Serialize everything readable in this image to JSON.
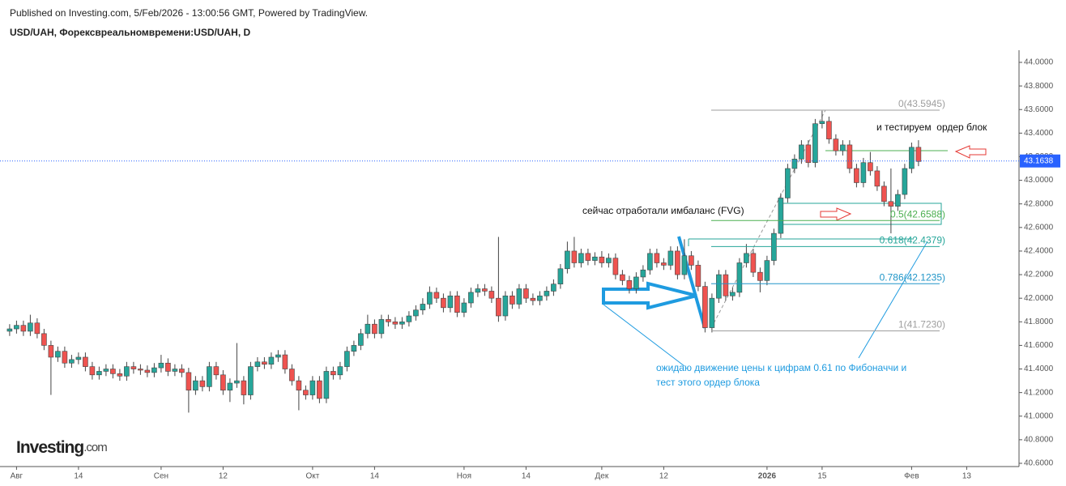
{
  "header": {
    "published": "Published on Investing.com, 5/Feb/2026 - 13:00:56 GMT, Powered by TradingView.",
    "symbol": "USD/UAH, Форексвреальномвремени:USD/UAH, D",
    "logo": "Investing",
    "logo_suffix": ".com"
  },
  "chart_data": {
    "type": "candlestick",
    "up_color": "#26a69a",
    "down_color": "#ef5350",
    "xlim": [
      -1.4,
      146.6
    ],
    "xticks": [
      {
        "value": 1,
        "label": "Авг"
      },
      {
        "value": 10,
        "label": "14"
      },
      {
        "value": 22,
        "label": "Сен"
      },
      {
        "value": 31,
        "label": "12"
      },
      {
        "value": 44,
        "label": "Окт"
      },
      {
        "value": 53,
        "label": "14"
      },
      {
        "value": 66,
        "label": "Ноя"
      },
      {
        "value": 75,
        "label": "14"
      },
      {
        "value": 86,
        "label": "Дек"
      },
      {
        "value": 95,
        "label": "12"
      },
      {
        "value": 110,
        "label": "2026"
      },
      {
        "value": 118,
        "label": "15"
      },
      {
        "value": 131,
        "label": "Фев"
      },
      {
        "value": 139,
        "label": "13"
      }
    ],
    "ylim": [
      40.6,
      44.0
    ],
    "yticks": [
      {
        "value": 40.6,
        "label": "40.6000"
      },
      {
        "value": 40.8,
        "label": "40.8000"
      },
      {
        "value": 41.0,
        "label": "41.0000"
      },
      {
        "value": 41.2,
        "label": "41.2000"
      },
      {
        "value": 41.4,
        "label": "41.4000"
      },
      {
        "value": 41.6,
        "label": "41.6000"
      },
      {
        "value": 41.8,
        "label": "41.8000"
      },
      {
        "value": 42.0,
        "label": "42.0000"
      },
      {
        "value": 42.2,
        "label": "42.2000"
      },
      {
        "value": 42.4,
        "label": "42.4000"
      },
      {
        "value": 42.6,
        "label": "42.6000"
      },
      {
        "value": 42.8,
        "label": "42.8000"
      },
      {
        "value": 43.0,
        "label": "43.0000"
      },
      {
        "value": 43.2,
        "label": "43.2000"
      },
      {
        "value": 43.4,
        "label": "43.4000"
      },
      {
        "value": 43.6,
        "label": "43.6000"
      },
      {
        "value": 43.8,
        "label": "43.8000"
      },
      {
        "value": 44.0,
        "label": "44.0000"
      }
    ],
    "last_price": 43.1638,
    "open": [
      41.72,
      41.74,
      41.77,
      41.72,
      41.79,
      41.7,
      41.6,
      41.5,
      41.55,
      41.45,
      41.48,
      41.5,
      41.42,
      41.35,
      41.38,
      41.4,
      41.36,
      41.34,
      41.42,
      41.4,
      41.39,
      41.37,
      41.41,
      41.45,
      41.38,
      41.4,
      41.37,
      41.22,
      41.3,
      41.25,
      41.42,
      41.35,
      41.22,
      41.28,
      41.3,
      41.18,
      41.42,
      41.46,
      41.44,
      41.5,
      41.52,
      41.4,
      41.3,
      41.22,
      41.18,
      41.3,
      41.15,
      41.38,
      41.35,
      41.42,
      41.55,
      41.6,
      41.7,
      41.78,
      41.7,
      41.82,
      41.8,
      41.78,
      41.8,
      41.85,
      41.9,
      41.95,
      42.05,
      42.0,
      41.92,
      42.02,
      41.88,
      41.96,
      42.05,
      42.08,
      42.06,
      42.0,
      41.85,
      42.02,
      41.95,
      42.08,
      42.0,
      41.98,
      42.02,
      42.06,
      42.12,
      42.25,
      42.4,
      42.3,
      42.38,
      42.32,
      42.35,
      42.3,
      42.34,
      42.2,
      42.15,
      42.08,
      42.18,
      42.24,
      42.38,
      42.3,
      42.28,
      42.4,
      42.2,
      42.36,
      42.28,
      42.1,
      41.75,
      42.0,
      42.2,
      42.02,
      42.05,
      42.3,
      42.38,
      42.22,
      42.15,
      42.32,
      42.55,
      42.85,
      43.1,
      43.18,
      43.3,
      43.15,
      43.48,
      43.5,
      43.35,
      43.25,
      43.3,
      43.1,
      42.98,
      43.15,
      43.08,
      42.95,
      42.82,
      42.78,
      42.88,
      43.1,
      43.28
    ],
    "high": [
      41.78,
      41.81,
      41.81,
      41.86,
      41.83,
      41.74,
      41.64,
      41.59,
      41.59,
      41.52,
      41.54,
      41.54,
      41.46,
      41.42,
      41.44,
      41.44,
      41.4,
      41.46,
      41.46,
      41.44,
      41.43,
      41.45,
      41.52,
      41.49,
      41.44,
      41.44,
      41.41,
      41.34,
      41.34,
      41.46,
      41.46,
      41.39,
      41.32,
      41.62,
      41.34,
      41.46,
      41.5,
      41.5,
      41.54,
      41.56,
      41.56,
      41.44,
      41.34,
      41.26,
      41.34,
      41.34,
      41.42,
      41.42,
      41.46,
      41.59,
      41.64,
      41.74,
      41.86,
      41.82,
      41.86,
      41.86,
      41.84,
      41.84,
      41.89,
      41.94,
      42.0,
      42.1,
      42.09,
      42.04,
      42.06,
      42.06,
      42.0,
      42.09,
      42.12,
      42.12,
      42.1,
      42.52,
      42.06,
      42.06,
      42.12,
      42.12,
      42.04,
      42.06,
      42.1,
      42.16,
      42.29,
      42.48,
      42.52,
      42.42,
      42.42,
      42.39,
      42.4,
      42.38,
      42.38,
      42.24,
      42.19,
      42.22,
      42.28,
      42.42,
      42.42,
      42.34,
      42.44,
      42.44,
      42.5,
      42.4,
      42.32,
      42.14,
      42.04,
      42.24,
      42.24,
      42.09,
      42.34,
      42.46,
      42.42,
      42.26,
      42.36,
      42.59,
      42.89,
      43.14,
      43.22,
      43.34,
      43.34,
      43.52,
      43.59,
      43.54,
      43.39,
      43.34,
      43.34,
      43.14,
      43.19,
      43.24,
      43.12,
      42.99,
      43.1,
      42.92,
      43.14,
      43.32,
      43.34
    ],
    "low": [
      41.68,
      41.7,
      41.68,
      41.68,
      41.66,
      41.56,
      41.18,
      41.46,
      41.41,
      41.41,
      41.44,
      41.38,
      41.31,
      41.31,
      41.34,
      41.32,
      41.3,
      41.3,
      41.36,
      41.35,
      41.33,
      41.33,
      41.37,
      41.34,
      41.34,
      41.33,
      41.03,
      41.18,
      41.21,
      41.21,
      41.31,
      41.18,
      41.12,
      41.24,
      41.1,
      41.14,
      41.38,
      41.4,
      41.4,
      41.46,
      41.36,
      41.26,
      41.05,
      41.14,
      41.14,
      41.11,
      41.11,
      41.31,
      41.31,
      41.38,
      41.51,
      41.56,
      41.66,
      41.66,
      41.66,
      41.76,
      41.74,
      41.74,
      41.76,
      41.81,
      41.86,
      41.91,
      41.96,
      41.88,
      41.88,
      41.84,
      41.84,
      41.92,
      42.01,
      42.02,
      41.96,
      41.8,
      41.81,
      41.91,
      41.91,
      41.96,
      41.94,
      41.94,
      41.98,
      42.02,
      42.08,
      42.21,
      42.26,
      42.26,
      42.28,
      42.28,
      42.26,
      42.26,
      42.16,
      42.11,
      42.04,
      42.04,
      42.14,
      42.2,
      42.26,
      42.24,
      42.24,
      42.16,
      42.16,
      42.24,
      42.06,
      41.71,
      41.71,
      41.96,
      41.98,
      41.98,
      42.01,
      42.26,
      42.18,
      42.05,
      42.11,
      42.28,
      42.51,
      42.81,
      43.06,
      43.14,
      43.11,
      43.11,
      43.44,
      43.31,
      43.21,
      43.21,
      43.06,
      42.94,
      42.94,
      43.04,
      42.91,
      42.78,
      42.55,
      42.74,
      42.84,
      43.06,
      43.12
    ],
    "close": [
      41.74,
      41.77,
      41.72,
      41.79,
      41.7,
      41.6,
      41.5,
      41.55,
      41.45,
      41.48,
      41.5,
      41.42,
      41.35,
      41.38,
      41.4,
      41.36,
      41.34,
      41.42,
      41.4,
      41.39,
      41.37,
      41.41,
      41.45,
      41.38,
      41.4,
      41.37,
      41.22,
      41.3,
      41.25,
      41.42,
      41.35,
      41.22,
      41.28,
      41.3,
      41.18,
      41.42,
      41.46,
      41.44,
      41.5,
      41.52,
      41.4,
      41.3,
      41.22,
      41.18,
      41.3,
      41.15,
      41.38,
      41.35,
      41.42,
      41.55,
      41.6,
      41.7,
      41.78,
      41.7,
      41.82,
      41.8,
      41.78,
      41.8,
      41.85,
      41.9,
      41.95,
      42.05,
      42.0,
      41.92,
      42.02,
      41.88,
      41.96,
      42.05,
      42.08,
      42.06,
      42.0,
      41.85,
      42.02,
      41.95,
      42.08,
      42.0,
      41.98,
      42.02,
      42.06,
      42.12,
      42.25,
      42.4,
      42.3,
      42.38,
      42.32,
      42.35,
      42.3,
      42.34,
      42.2,
      42.15,
      42.08,
      42.18,
      42.24,
      42.38,
      42.3,
      42.28,
      42.4,
      42.2,
      42.36,
      42.28,
      42.1,
      41.75,
      42.0,
      42.2,
      42.02,
      42.05,
      42.3,
      42.38,
      42.22,
      42.15,
      42.32,
      42.55,
      42.85,
      43.1,
      43.18,
      43.3,
      43.15,
      43.48,
      43.5,
      43.35,
      43.25,
      43.3,
      43.1,
      42.98,
      43.15,
      43.08,
      42.95,
      42.82,
      42.78,
      42.88,
      43.1,
      43.28,
      43.16
    ],
    "fib_levels": [
      {
        "value": 43.5945,
        "label": "0(43.5945)",
        "color": "#9e9e9e"
      },
      {
        "value": 42.6588,
        "label": "0.5(42.6588)",
        "color": "#4caf50"
      },
      {
        "value": 42.4379,
        "label": "0.618(42.4379)",
        "color": "#26a69a"
      },
      {
        "value": 42.1235,
        "label": "0.786(42.1235)",
        "color": "#2196c8"
      },
      {
        "value": 41.723,
        "label": "1(41.7230)",
        "color": "#9e9e9e"
      }
    ],
    "annotations": [
      "сейчас отработали имбаланс (FVG)",
      "и тестируем  ордер блок",
      "ожидаю движение цены к цифрам 0.61 по Фибоначчи и",
      "тест этого ордер блока"
    ]
  }
}
